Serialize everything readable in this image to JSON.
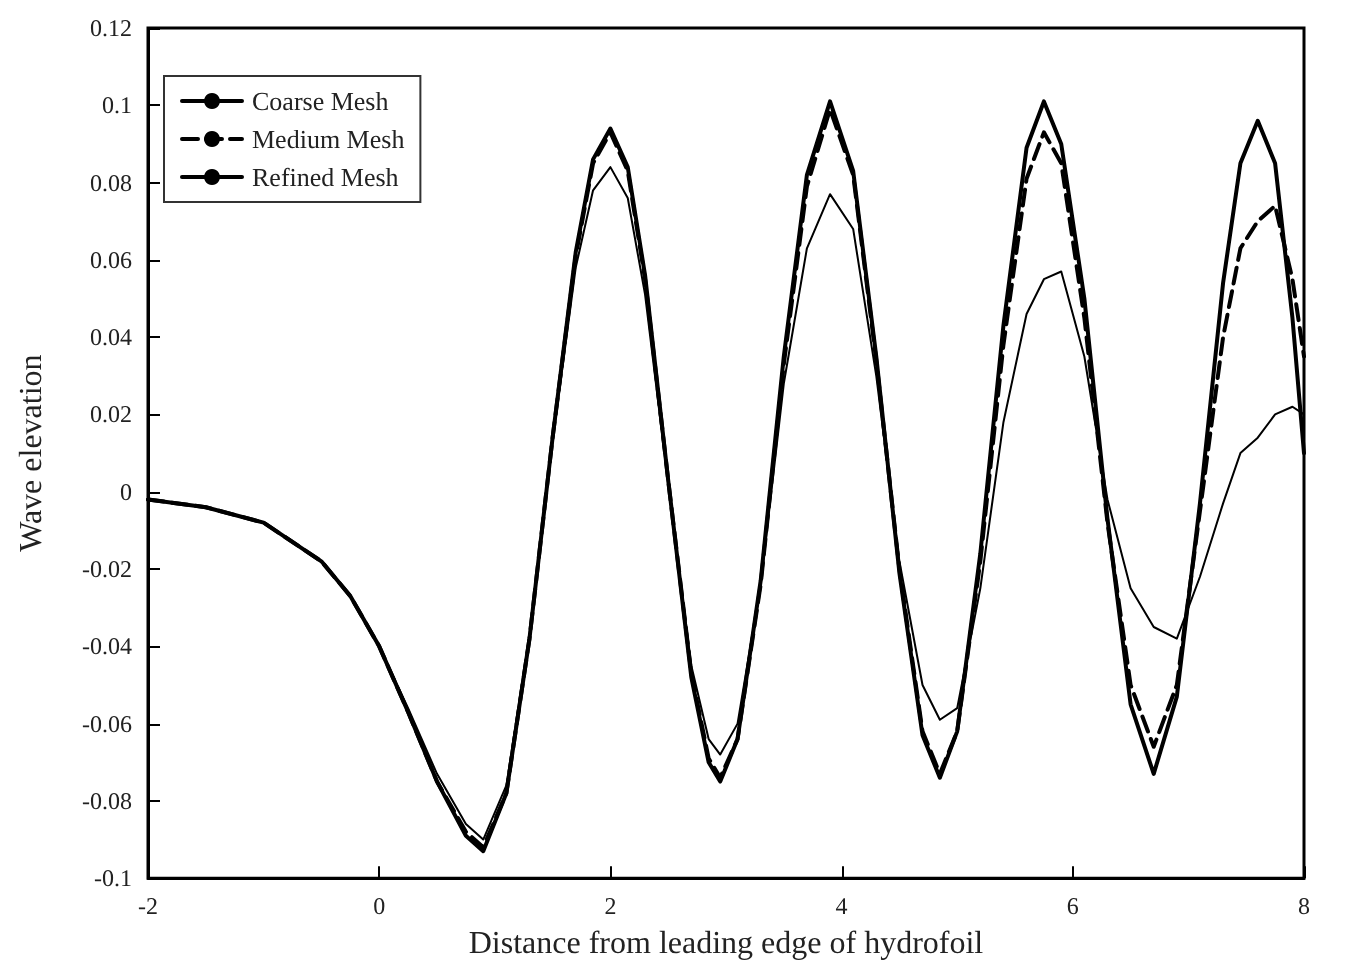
{
  "chart_data": {
    "type": "line",
    "xlabel": "Distance from leading edge of hydrofoil",
    "ylabel": "Wave elevation",
    "x": [
      -2,
      -1.5,
      -1,
      -0.5,
      -0.25,
      0,
      0.25,
      0.5,
      0.75,
      0.9,
      1.1,
      1.3,
      1.5,
      1.7,
      1.85,
      2.0,
      2.15,
      2.3,
      2.5,
      2.7,
      2.85,
      2.95,
      3.1,
      3.3,
      3.5,
      3.7,
      3.9,
      4.1,
      4.3,
      4.5,
      4.7,
      4.85,
      5.0,
      5.2,
      5.4,
      5.6,
      5.75,
      5.9,
      6.1,
      6.3,
      6.5,
      6.7,
      6.9,
      7.1,
      7.3,
      7.45,
      7.6,
      7.75,
      7.9,
      8
    ],
    "series": [
      {
        "name": "Coarse Mesh",
        "color": "#000000",
        "line_style": "solid",
        "values": [
          -0.002,
          -0.004,
          -0.008,
          -0.018,
          -0.027,
          -0.04,
          -0.056,
          -0.073,
          -0.086,
          -0.09,
          -0.076,
          -0.037,
          0.013,
          0.058,
          0.078,
          0.084,
          0.076,
          0.051,
          0.002,
          -0.045,
          -0.064,
          -0.068,
          -0.06,
          -0.024,
          0.028,
          0.063,
          0.077,
          0.068,
          0.03,
          -0.018,
          -0.05,
          -0.059,
          -0.056,
          -0.025,
          0.018,
          0.046,
          0.055,
          0.057,
          0.035,
          -0.002,
          -0.025,
          -0.035,
          -0.038,
          -0.022,
          -0.003,
          0.01,
          0.014,
          0.02,
          0.022,
          0.02
        ]
      },
      {
        "name": "Medium Mesh",
        "color": "#000000",
        "line_style": "dashed",
        "values": [
          -0.002,
          -0.004,
          -0.008,
          -0.018,
          -0.027,
          -0.04,
          -0.057,
          -0.075,
          -0.088,
          -0.092,
          -0.078,
          -0.038,
          0.014,
          0.061,
          0.085,
          0.093,
          0.083,
          0.055,
          0.003,
          -0.047,
          -0.069,
          -0.074,
          -0.064,
          -0.024,
          0.033,
          0.079,
          0.099,
          0.082,
          0.034,
          -0.02,
          -0.062,
          -0.073,
          -0.062,
          -0.018,
          0.038,
          0.081,
          0.093,
          0.085,
          0.045,
          -0.008,
          -0.05,
          -0.066,
          -0.05,
          -0.005,
          0.04,
          0.063,
          0.07,
          0.074,
          0.055,
          0.035
        ]
      },
      {
        "name": "Refined Mesh",
        "color": "#000000",
        "line_style": "solid",
        "values": [
          -0.002,
          -0.004,
          -0.008,
          -0.018,
          -0.027,
          -0.04,
          -0.057,
          -0.075,
          -0.089,
          -0.093,
          -0.078,
          -0.038,
          0.014,
          0.062,
          0.086,
          0.094,
          0.084,
          0.056,
          0.003,
          -0.048,
          -0.07,
          -0.075,
          -0.064,
          -0.023,
          0.035,
          0.082,
          0.101,
          0.083,
          0.035,
          -0.021,
          -0.063,
          -0.074,
          -0.062,
          -0.016,
          0.043,
          0.089,
          0.101,
          0.09,
          0.05,
          -0.007,
          -0.055,
          -0.073,
          -0.053,
          -0.003,
          0.054,
          0.085,
          0.096,
          0.085,
          0.045,
          0.01
        ]
      }
    ],
    "xlim": [
      -2,
      8
    ],
    "xticks": [
      -2,
      0,
      2,
      4,
      6,
      8
    ],
    "ylim": [
      -0.1,
      0.12
    ],
    "yticks": [
      -0.1,
      -0.08,
      -0.06,
      -0.04,
      -0.02,
      0,
      0.02,
      0.04,
      0.06,
      0.08,
      0.1,
      0.12
    ],
    "grid": false,
    "legend": "top left",
    "marker": "none"
  }
}
